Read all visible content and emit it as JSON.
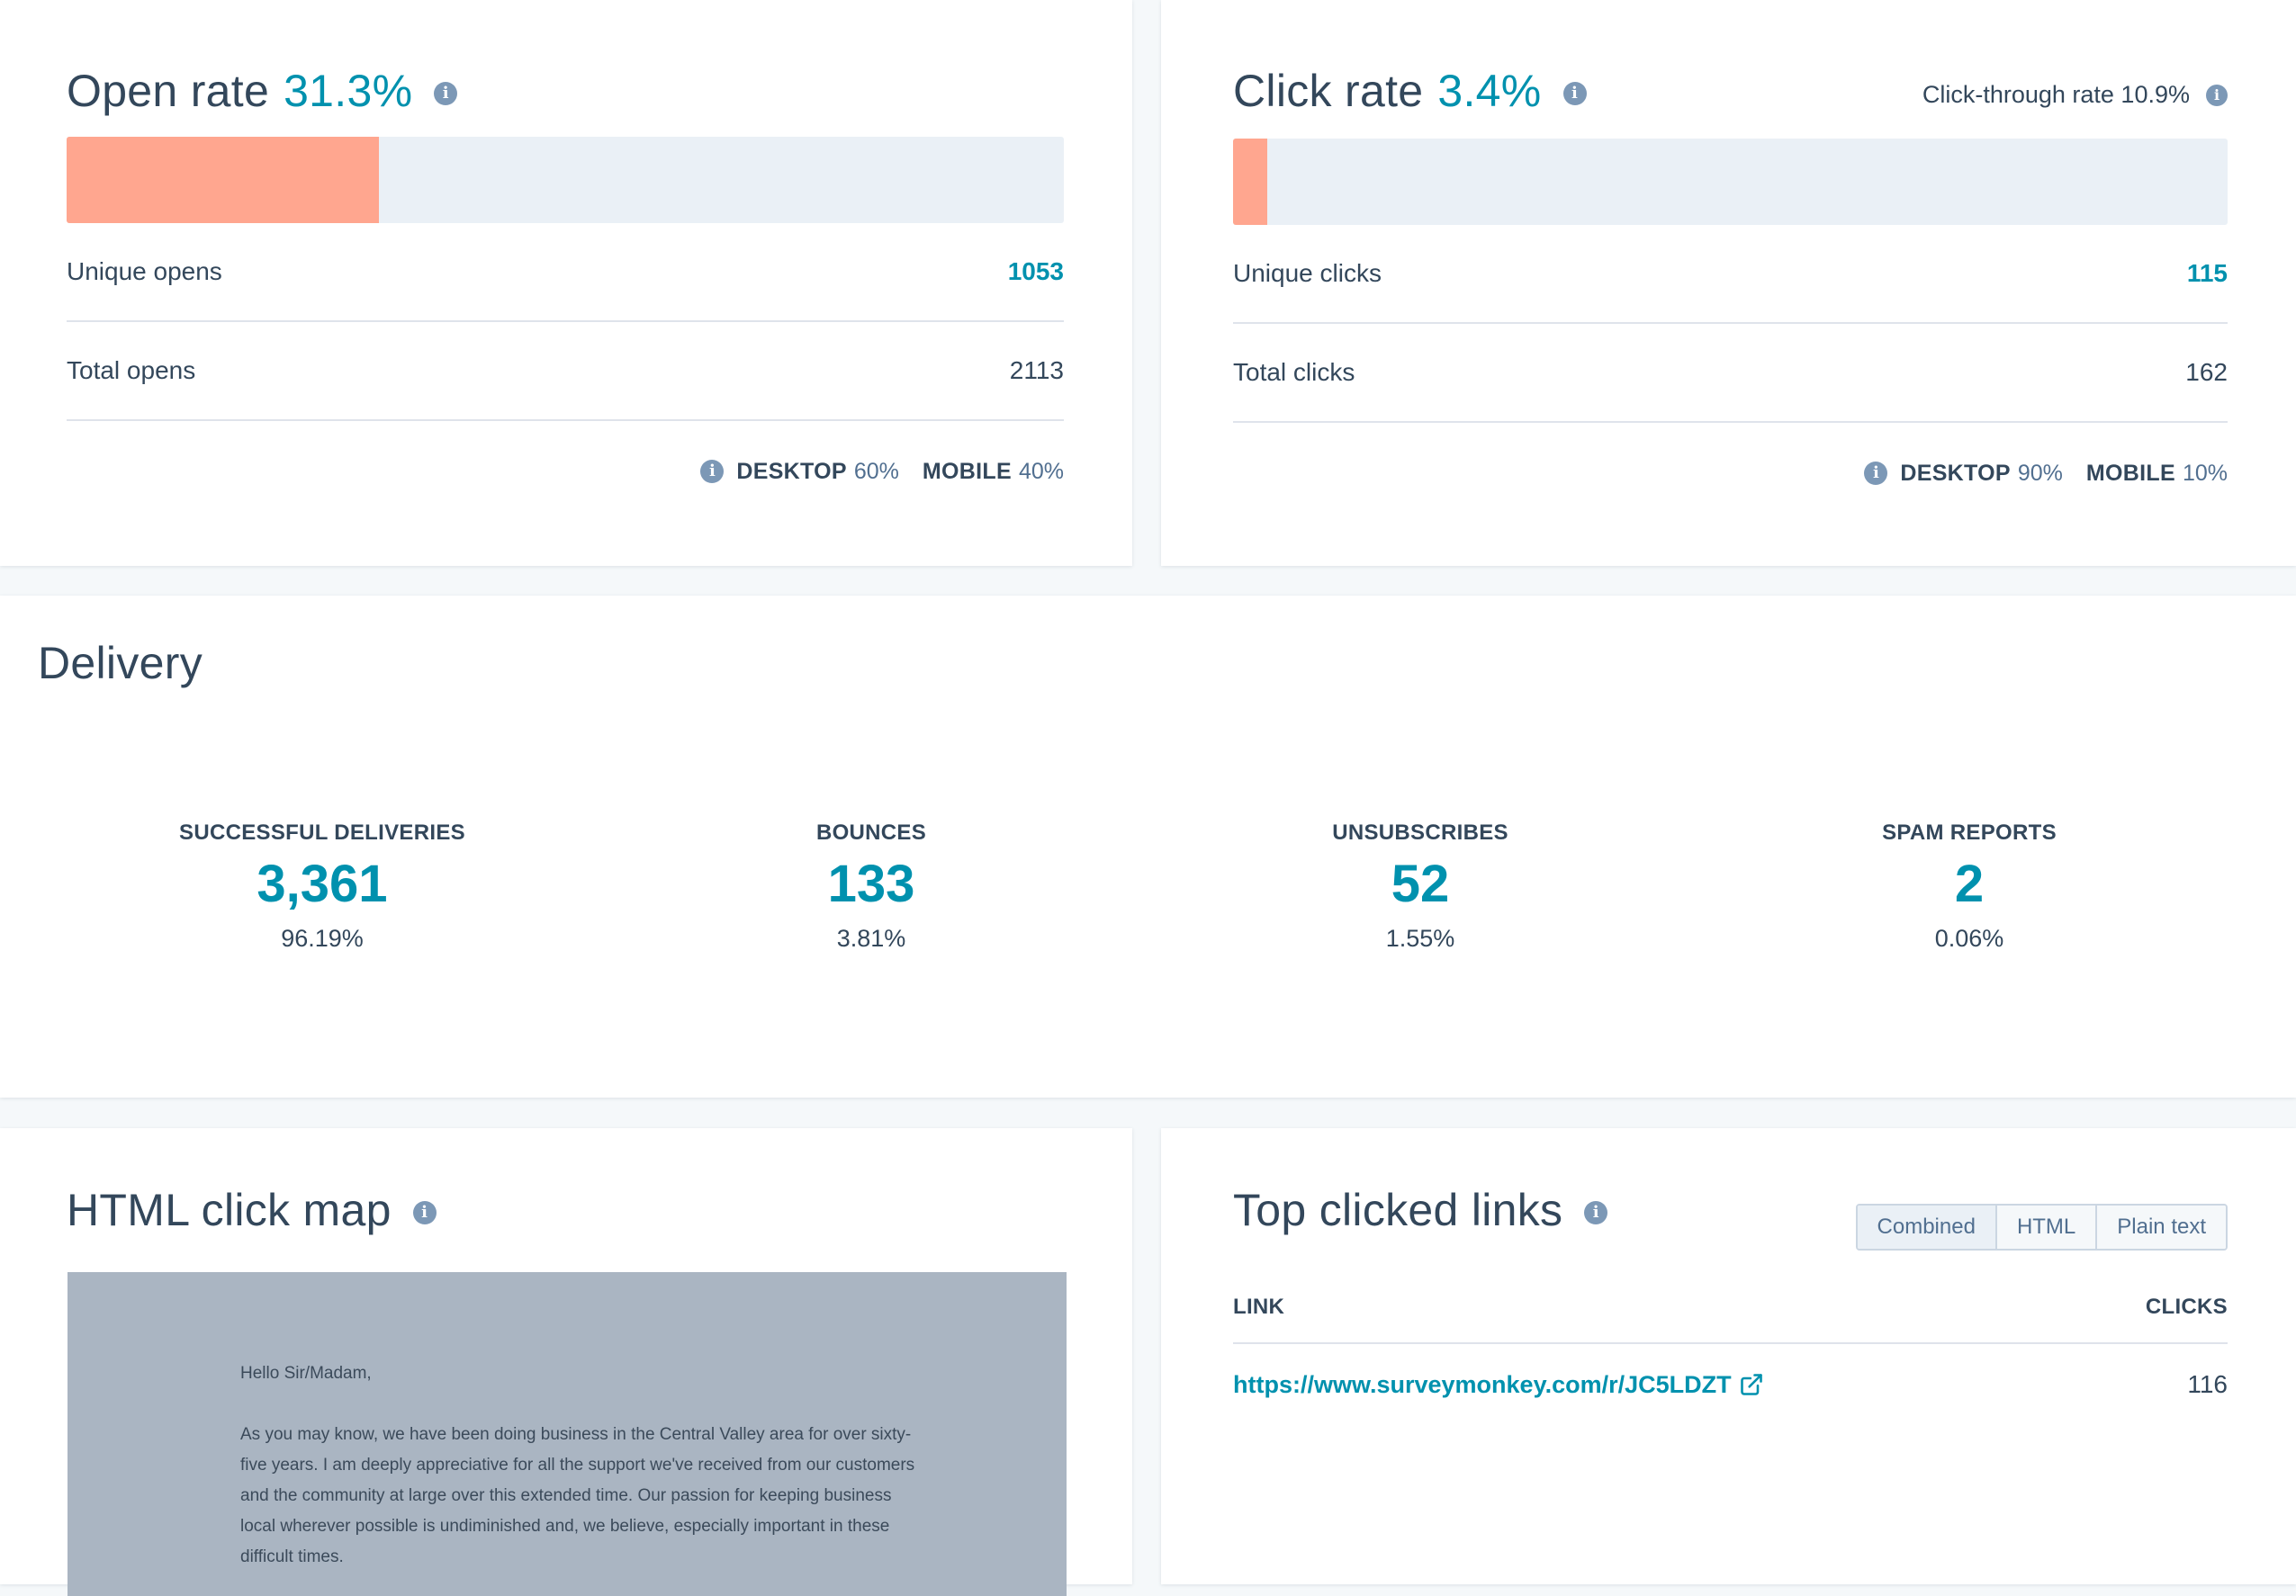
{
  "open_rate": {
    "title": "Open rate",
    "rate": "31.3%",
    "fill_fraction": 0.313,
    "rows": [
      {
        "label": "Unique opens",
        "value": "1053"
      },
      {
        "label": "Total opens",
        "value": "2113"
      }
    ],
    "devices": [
      {
        "label": "DESKTOP",
        "value": "60%"
      },
      {
        "label": "MOBILE",
        "value": "40%"
      }
    ]
  },
  "click_rate": {
    "title": "Click rate",
    "rate": "3.4%",
    "fill_fraction": 0.034,
    "ctr_label": "Click-through rate 10.9%",
    "rows": [
      {
        "label": "Unique clicks",
        "value": "115"
      },
      {
        "label": "Total clicks",
        "value": "162"
      }
    ],
    "devices": [
      {
        "label": "DESKTOP",
        "value": "90%"
      },
      {
        "label": "MOBILE",
        "value": "10%"
      }
    ]
  },
  "delivery": {
    "title": "Delivery",
    "stats": [
      {
        "label": "SUCCESSFUL DELIVERIES",
        "value": "3,361",
        "pct": "96.19%"
      },
      {
        "label": "BOUNCES",
        "value": "133",
        "pct": "3.81%"
      },
      {
        "label": "UNSUBSCRIBES",
        "value": "52",
        "pct": "1.55%"
      },
      {
        "label": "SPAM REPORTS",
        "value": "2",
        "pct": "0.06%"
      }
    ]
  },
  "click_map": {
    "title": "HTML click map",
    "greeting": "Hello Sir/Madam,",
    "body": "As you may know, we have been doing business in the Central Valley area for over sixty-five years. I am deeply appreciative for all the support we've received from our customers and the community at large over this extended time. Our passion for keeping business local wherever possible is undiminished and, we believe, especially important in these difficult times."
  },
  "top_links": {
    "title": "Top clicked links",
    "toggles": [
      "Combined",
      "HTML",
      "Plain text"
    ],
    "active_toggle": "Combined",
    "columns": {
      "link": "LINK",
      "clicks": "CLICKS"
    },
    "rows": [
      {
        "link": "https://www.surveymonkey.com/r/JC5LDZT",
        "clicks": "116"
      }
    ]
  },
  "colors": {
    "accent": "#0091ae",
    "bar_fill": "#ffa68f",
    "bar_track": "#eaf0f6",
    "text": "#33475b"
  },
  "icons": [
    "info-icon",
    "external-link-icon"
  ]
}
